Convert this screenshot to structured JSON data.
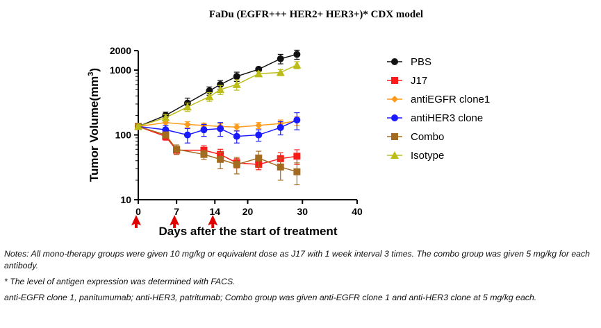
{
  "chart_data": {
    "type": "line",
    "title": "FaDu (EGFR+++ HER2+ HER3+)* CDX model",
    "xlabel": "Days after the start of treatment",
    "ylabel": "Tumor Volume(mm",
    "ylabel_sup": "3",
    "ylabel_close": ")",
    "xlim": [
      0,
      40
    ],
    "ylim": [
      10,
      2000
    ],
    "yscale": "log",
    "x_ticks": [
      0,
      7,
      14,
      20,
      30,
      40
    ],
    "y_ticks": [
      10,
      100,
      1000,
      2000
    ],
    "legend_position": "right",
    "dosing_days": [
      0,
      7,
      14
    ],
    "series": [
      {
        "name": "PBS",
        "color": "#111111",
        "marker": "circle",
        "x": [
          0,
          5,
          9,
          13,
          15,
          18,
          22,
          26,
          29
        ],
        "y": [
          135,
          200,
          310,
          480,
          600,
          800,
          1030,
          1500,
          1750
        ],
        "err": [
          8,
          25,
          60,
          70,
          90,
          130,
          80,
          250,
          280
        ]
      },
      {
        "name": "J17",
        "color": "#ff1a1a",
        "marker": "square",
        "x": [
          0,
          5,
          7,
          12,
          15,
          18,
          22,
          26,
          29
        ],
        "y": [
          135,
          95,
          58,
          58,
          50,
          37,
          35,
          43,
          47
        ],
        "err": [
          8,
          12,
          8,
          10,
          10,
          6,
          6,
          10,
          12
        ]
      },
      {
        "name": "antiEGFR clone1",
        "color": "#ff9a1a",
        "marker": "diamond",
        "x": [
          0,
          5,
          9,
          12,
          15,
          18,
          22,
          26,
          29
        ],
        "y": [
          135,
          155,
          145,
          140,
          135,
          132,
          140,
          150,
          165
        ],
        "err": [
          8,
          15,
          15,
          12,
          15,
          15,
          15,
          20,
          25
        ]
      },
      {
        "name": "antiHER3 clone",
        "color": "#1a1aff",
        "marker": "circle",
        "x": [
          0,
          5,
          9,
          12,
          15,
          18,
          22,
          26,
          29
        ],
        "y": [
          135,
          120,
          100,
          120,
          125,
          95,
          100,
          130,
          170
        ],
        "err": [
          8,
          20,
          25,
          25,
          30,
          20,
          20,
          30,
          50
        ]
      },
      {
        "name": "Combo",
        "color": "#a36b1f",
        "marker": "square",
        "x": [
          0,
          5,
          7,
          12,
          15,
          18,
          22,
          26,
          29
        ],
        "y": [
          135,
          100,
          60,
          50,
          42,
          35,
          44,
          32,
          27
        ],
        "err": [
          8,
          10,
          10,
          8,
          12,
          10,
          12,
          12,
          10
        ]
      },
      {
        "name": "Isotype",
        "color": "#bdbd1a",
        "marker": "triangle",
        "x": [
          0,
          5,
          9,
          13,
          15,
          18,
          22,
          26,
          29
        ],
        "y": [
          135,
          185,
          270,
          390,
          500,
          600,
          880,
          920,
          1200
        ],
        "err": [
          8,
          20,
          40,
          60,
          80,
          110,
          80,
          100,
          150
        ]
      }
    ]
  },
  "notes": {
    "line1": "Notes: All mono-therapy groups were given 10 mg/kg or equivalent dose as J17 with 1 week interval 3 times. The combo group was given 5 mg/kg for each antibody.",
    "line2": "* The level of antigen expression was determined with FACS.",
    "line3": "anti-EGFR clone 1, panitumumab; anti-HER3, patritumab; Combo group was given anti-EGFR clone 1 and anti-HER3 clone at 5 mg/kg each."
  }
}
